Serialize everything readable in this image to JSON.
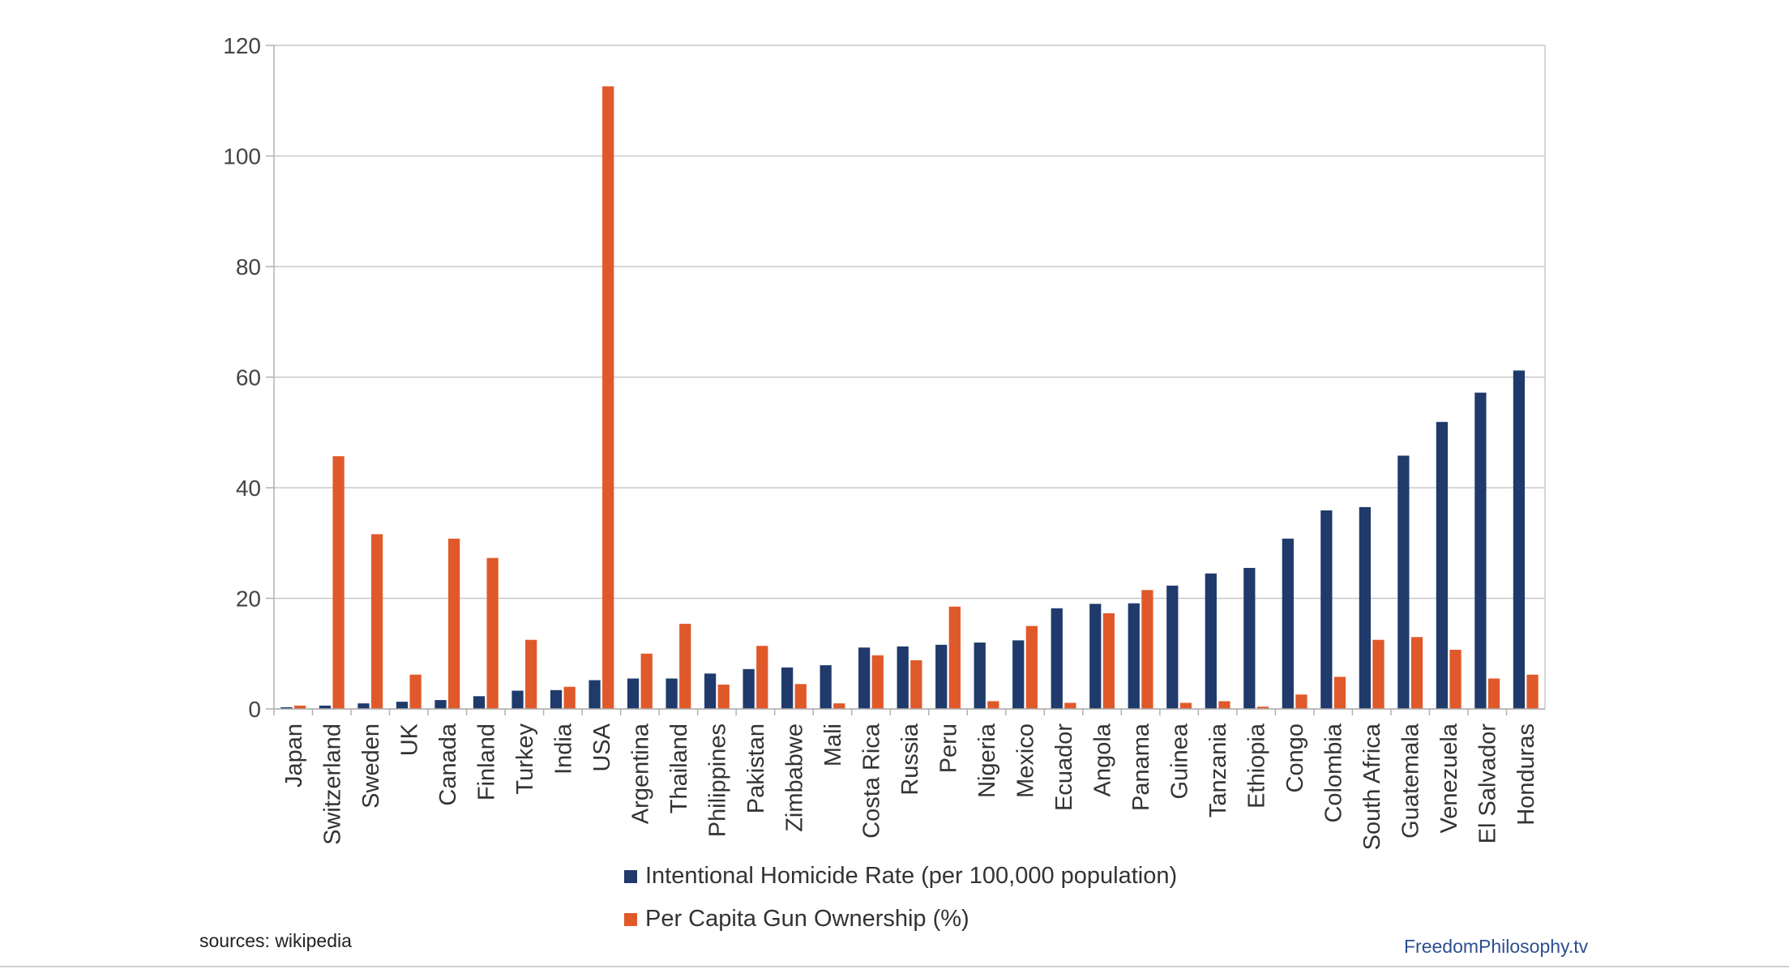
{
  "source_note": "sources: wikipedia",
  "brand": "FreedomPhilosophy.tv",
  "colors": {
    "homicide": "#1f3a6b",
    "gun": "#e0592a",
    "grid": "#c8c8c8"
  },
  "chart_data": {
    "type": "bar",
    "title": "",
    "xlabel": "",
    "ylabel": "",
    "ylim": [
      0,
      120
    ],
    "yticks": [
      0,
      20,
      40,
      60,
      80,
      100,
      120
    ],
    "grid": true,
    "legend_position": "bottom",
    "categories": [
      "Japan",
      "Switzerland",
      "Sweden",
      "UK",
      "Canada",
      "Finland",
      "Turkey",
      "India",
      "USA",
      "Argentina",
      "Thailand",
      "Philippines",
      "Pakistan",
      "Zimbabwe",
      "Mali",
      "Costa Rica",
      "Russia",
      "Peru",
      "Nigeria",
      "Mexico",
      "Ecuador",
      "Angola",
      "Panama",
      "Guinea",
      "Tanzania",
      "Ethiopia",
      "Congo",
      "Colombia",
      "South Africa",
      "Guatemala",
      "Venezuela",
      "El Salvador",
      "Honduras"
    ],
    "series": [
      {
        "name": "Intentional Homicide Rate (per 100,000 population)",
        "values": [
          0.3,
          0.6,
          1.0,
          1.3,
          1.6,
          2.3,
          3.3,
          3.4,
          5.2,
          5.5,
          5.5,
          6.4,
          7.2,
          7.5,
          7.9,
          11.1,
          11.3,
          11.6,
          12.0,
          12.4,
          18.2,
          19.0,
          19.1,
          22.3,
          24.5,
          25.5,
          30.8,
          35.9,
          36.5,
          45.8,
          51.9,
          57.2,
          61.2
        ]
      },
      {
        "name": "Per Capita Gun Ownership (%)",
        "values": [
          0.6,
          45.7,
          31.6,
          6.2,
          30.8,
          27.3,
          12.5,
          4.0,
          112.6,
          10.0,
          15.4,
          4.4,
          11.4,
          4.5,
          1.0,
          9.7,
          8.8,
          18.5,
          1.4,
          15.0,
          1.1,
          17.3,
          21.5,
          1.1,
          1.4,
          0.4,
          2.6,
          5.8,
          12.5,
          13.0,
          10.7,
          5.5,
          6.2
        ]
      }
    ]
  }
}
